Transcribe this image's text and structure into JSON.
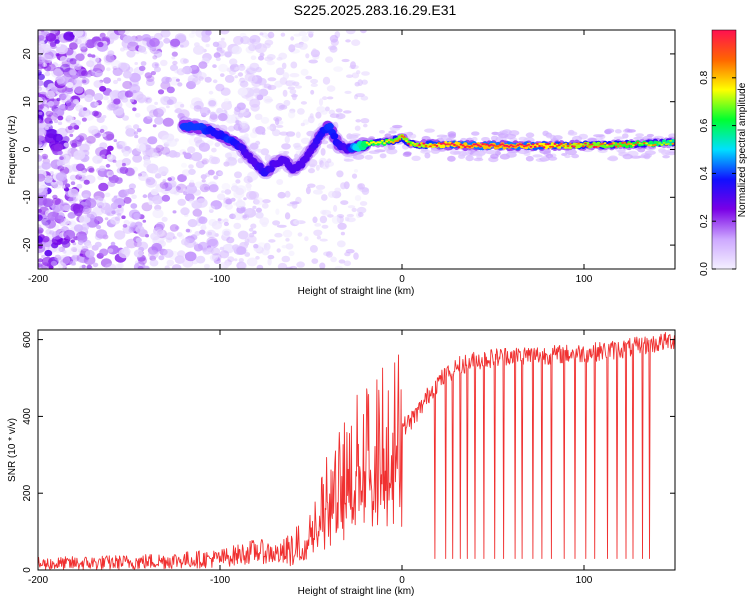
{
  "title": "S225.2025.283.16.29.E31",
  "chart_data": [
    {
      "type": "heatmap",
      "xlabel": "Height of straight line (km)",
      "ylabel": "Frequency (Hz)",
      "xlim": [
        -200,
        150
      ],
      "ylim": [
        -25,
        25
      ],
      "xticks": [
        -200,
        -100,
        0,
        100
      ],
      "xtick_labels": [
        "-200",
        "-100",
        "0",
        "100"
      ],
      "yticks": [
        -20,
        -10,
        0,
        10,
        20
      ],
      "ytick_labels": [
        "-20",
        "-10",
        "0",
        "10",
        "20"
      ],
      "colorbar": {
        "label": "Normalized spectral amplitude",
        "range": [
          0,
          1
        ],
        "ticks": [
          0.0,
          0.2,
          0.4,
          0.6,
          0.8
        ],
        "tick_labels": [
          "0.0",
          "0.2",
          "0.4",
          "0.6",
          "0.8"
        ],
        "colors": [
          "#f4f0ff",
          "#cda8ff",
          "#7a00e6",
          "#1010ff",
          "#00e0ff",
          "#00ff30",
          "#ffff00",
          "#ff6600",
          "#ff1050"
        ]
      },
      "ridge": {
        "x": [
          -120,
          -110,
          -100,
          -95,
          -90,
          -85,
          -80,
          -75,
          -70,
          -65,
          -60,
          -55,
          -50,
          -45,
          -40,
          -35,
          -30,
          -25,
          -20,
          -15,
          -10,
          -5,
          0,
          5,
          10,
          20,
          40,
          60,
          80,
          100,
          120,
          150
        ],
        "y": [
          5,
          4.5,
          3,
          2,
          1,
          -1,
          -3,
          -5,
          -3,
          -2,
          -4,
          -3,
          0,
          3,
          5,
          1,
          0,
          0.5,
          1,
          1.5,
          1.5,
          1.8,
          2.5,
          1.2,
          1,
          1,
          0.8,
          0.8,
          0.8,
          0.9,
          1.0,
          1.5
        ],
        "amplitude": [
          0.4,
          0.4,
          0.35,
          0.4,
          0.35,
          0.3,
          0.3,
          0.35,
          0.3,
          0.3,
          0.3,
          0.3,
          0.3,
          0.35,
          0.4,
          0.35,
          0.3,
          0.5,
          0.6,
          0.6,
          0.6,
          0.65,
          0.7,
          0.65,
          0.7,
          0.75,
          0.8,
          0.8,
          0.75,
          0.7,
          0.65,
          0.55
        ]
      },
      "scatter_region": {
        "x": [
          -200,
          -100
        ],
        "y": [
          -25,
          25
        ],
        "amplitude_max": 0.25
      }
    },
    {
      "type": "line",
      "xlabel": "Height of straight line (km)",
      "ylabel": "SNR (10 * v/v)",
      "xlim": [
        -200,
        150
      ],
      "ylim": [
        0,
        625
      ],
      "xticks": [
        -200,
        -100,
        0,
        100
      ],
      "xtick_labels": [
        "-200",
        "-100",
        "0",
        "100"
      ],
      "yticks": [
        0,
        200,
        400,
        600
      ],
      "ytick_labels": [
        "0",
        "200",
        "400",
        "600"
      ],
      "color": "#f03030",
      "series": [
        {
          "name": "SNR",
          "x": [
            -200,
            -150,
            -100,
            -80,
            -65,
            -55,
            -50,
            -45,
            -40,
            -35,
            -30,
            -25,
            -20,
            -15,
            -10,
            -5,
            0,
            5,
            10,
            15,
            20,
            30,
            40,
            60,
            80,
            100,
            120,
            140,
            150
          ],
          "y": [
            15,
            20,
            30,
            50,
            40,
            70,
            120,
            160,
            200,
            220,
            250,
            280,
            330,
            310,
            350,
            360,
            370,
            390,
            420,
            460,
            490,
            530,
            545,
            560,
            560,
            565,
            575,
            590,
            600
          ]
        }
      ],
      "dropouts": {
        "x": [
          18,
          24,
          28,
          32,
          36,
          40,
          45,
          51,
          56,
          62,
          66,
          72,
          77,
          82,
          89,
          95,
          101,
          106,
          113,
          118,
          123,
          127,
          132,
          136
        ],
        "y": [
          30,
          30,
          30,
          30,
          30,
          30,
          30,
          30,
          30,
          30,
          30,
          30,
          30,
          30,
          30,
          30,
          30,
          30,
          30,
          30,
          30,
          30,
          30,
          30
        ]
      }
    }
  ]
}
